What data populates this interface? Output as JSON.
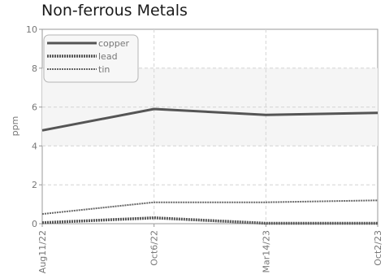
{
  "chart_data": {
    "type": "line",
    "title": "Non-ferrous Metals",
    "ylabel": "ppm",
    "xlabel": "",
    "ylim": [
      0,
      10
    ],
    "yticks": [
      0,
      2,
      4,
      6,
      8,
      10
    ],
    "ytick_labels": [
      "0",
      "2",
      "4",
      "6",
      "8",
      "10"
    ],
    "x": [
      "Aug11/22",
      "Oct6/22",
      "Mar14/23",
      "Oct2/23"
    ],
    "grid": true,
    "legend_position": "top-left",
    "series": [
      {
        "name": "copper",
        "values": [
          4.8,
          5.9,
          5.6,
          5.7
        ],
        "color": "#555555",
        "style": "solid"
      },
      {
        "name": "lead",
        "values": [
          0.05,
          0.3,
          0.02,
          0.02
        ],
        "color": "#555555",
        "style": "dashed-thick"
      },
      {
        "name": "tin",
        "values": [
          0.5,
          1.1,
          1.1,
          1.2
        ],
        "color": "#666666",
        "style": "dashed"
      }
    ]
  }
}
